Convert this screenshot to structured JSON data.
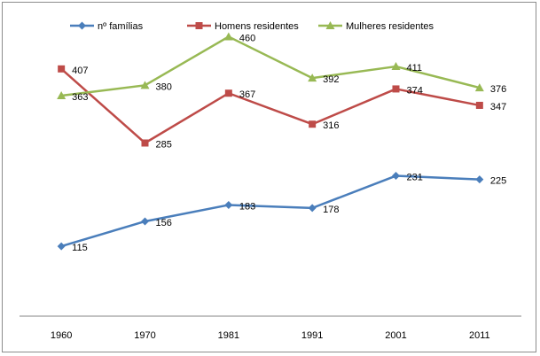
{
  "chart_data": {
    "type": "line",
    "title": "",
    "xlabel": "",
    "ylabel": "",
    "categories": [
      "1960",
      "1970",
      "1981",
      "1991",
      "2001",
      "2011"
    ],
    "ylim": [
      0,
      500
    ],
    "grid": false,
    "legend_position": "top",
    "series": [
      {
        "name": "nº  famílias",
        "color": "#4a7ebb",
        "marker": "diamond",
        "values": [
          115,
          156,
          183,
          178,
          231,
          225
        ]
      },
      {
        "name": "Homens residentes",
        "color": "#be4b48",
        "marker": "square",
        "values": [
          407,
          285,
          367,
          316,
          374,
          347
        ]
      },
      {
        "name": "Mulheres residentes",
        "color": "#98b954",
        "marker": "triangle",
        "values": [
          363,
          380,
          460,
          392,
          411,
          376
        ]
      }
    ]
  }
}
